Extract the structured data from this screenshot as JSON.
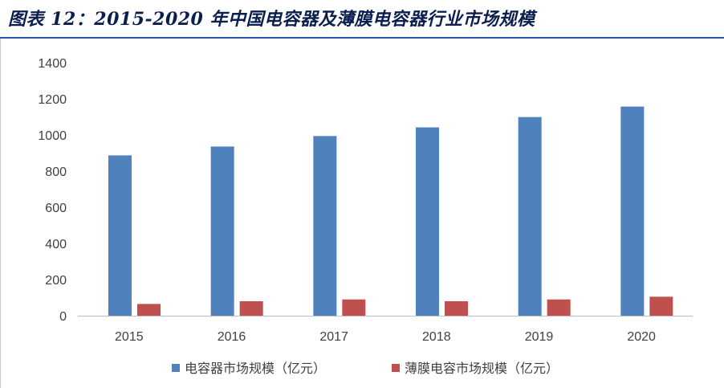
{
  "figure": {
    "title": "图表 12：2015-2020 年中国电容器及薄膜电容器行业市场规模"
  },
  "colors": {
    "title_text": "#0b1f4f",
    "title_rule": "#2d55a5",
    "series_1": "#4f81bd",
    "series_2": "#c0504d",
    "axis_text": "#404040",
    "axis_line": "#bfbfbf"
  },
  "chart_data": {
    "type": "bar",
    "categories": [
      "2015",
      "2016",
      "2017",
      "2018",
      "2019",
      "2020"
    ],
    "series": [
      {
        "name": "电容器市场规模（亿元）",
        "values": [
          887,
          936,
          994,
          1042,
          1099,
          1157
        ]
      },
      {
        "name": "薄膜电容市场规模（亿元）",
        "values": [
          65,
          80,
          90,
          80,
          90,
          105
        ]
      }
    ],
    "ylim": [
      0,
      1400
    ],
    "yticks": [
      0,
      200,
      400,
      600,
      800,
      1000,
      1200,
      1400
    ],
    "grid": false,
    "legend_position": "bottom"
  }
}
